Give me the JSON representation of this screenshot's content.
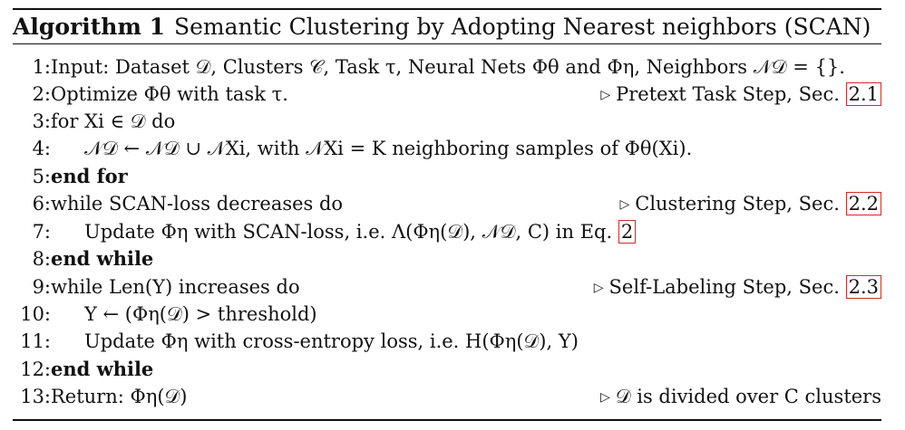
{
  "algorithm": {
    "label": "Algorithm 1",
    "title": "Semantic Clustering by Adopting Nearest neighbors (SCAN)"
  },
  "lines": [
    {
      "n": "1:",
      "text": "Input: Dataset 𝒟, Clusters 𝒞, Task τ, Neural Nets Φθ and Φη, Neighbors 𝒩𝒟 = {}."
    },
    {
      "n": "2:",
      "text": "Optimize Φθ with task τ.",
      "comment": "Pretext Task Step, Sec.",
      "ref": "2.1"
    },
    {
      "n": "3:",
      "text": "for Xi ∈ 𝒟 do"
    },
    {
      "n": "4:",
      "text": "𝒩𝒟 ← 𝒩𝒟 ∪ 𝒩Xi, with 𝒩Xi = K neighboring samples of Φθ(Xi)."
    },
    {
      "n": "5:",
      "text": "end for"
    },
    {
      "n": "6:",
      "text": "while SCAN-loss decreases do",
      "comment": "Clustering Step, Sec.",
      "ref": "2.2"
    },
    {
      "n": "7:",
      "text": "Update Φη with SCAN-loss, i.e. Λ(Φη(𝒟), 𝒩𝒟, C) in Eq.",
      "ref": "2"
    },
    {
      "n": "8:",
      "text": "end while"
    },
    {
      "n": "9:",
      "text": "while Len(Y) increases do",
      "comment": "Self-Labeling Step, Sec.",
      "ref": "2.3"
    },
    {
      "n": "10:",
      "text": "Y ← (Φη(𝒟) > threshold)"
    },
    {
      "n": "11:",
      "text": "Update Φη with cross-entropy loss, i.e. H(Φη(𝒟), Y)"
    },
    {
      "n": "12:",
      "text": "end while"
    },
    {
      "n": "13:",
      "text": "Return: Φη(𝒟)",
      "comment": "𝒟 is divided over C clusters"
    }
  ]
}
